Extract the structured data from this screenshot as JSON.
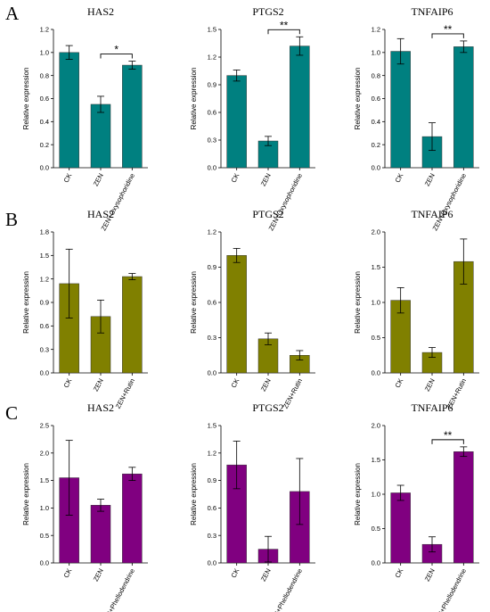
{
  "row_labels": [
    "A",
    "B",
    "C"
  ],
  "chart_data": [
    {
      "type": "bar",
      "row": 0,
      "col": 0,
      "title": "HAS2",
      "ylabel": "Relative expression",
      "color": "#008080",
      "categories": [
        "CK",
        "ZEN",
        "ZEN+Oxysophoridine"
      ],
      "values": [
        1.0,
        0.55,
        0.89
      ],
      "errors": [
        0.06,
        0.07,
        0.035
      ],
      "ylim": [
        0,
        1.2
      ],
      "yticks": [
        "0.0",
        "0.2",
        "0.4",
        "0.6",
        "0.8",
        "1.0",
        "1.2"
      ],
      "significance": [
        {
          "from": 1,
          "to": 2,
          "label": "*"
        }
      ]
    },
    {
      "type": "bar",
      "row": 0,
      "col": 1,
      "title": "PTGS2",
      "ylabel": "Relative expression",
      "color": "#008080",
      "categories": [
        "CK",
        "ZEN",
        "ZEN+Oxysophoridine"
      ],
      "values": [
        1.0,
        0.29,
        1.32
      ],
      "errors": [
        0.06,
        0.05,
        0.1
      ],
      "ylim": [
        0,
        1.5
      ],
      "yticks": [
        "0.0",
        "0.3",
        "0.6",
        "0.9",
        "1.2",
        "1.5"
      ],
      "significance": [
        {
          "from": 1,
          "to": 2,
          "label": "**"
        }
      ]
    },
    {
      "type": "bar",
      "row": 0,
      "col": 2,
      "title": "TNFAIP6",
      "ylabel": "Relative expression",
      "color": "#008080",
      "categories": [
        "CK",
        "ZEN",
        "ZEN+Oxysophoridine"
      ],
      "values": [
        1.01,
        0.27,
        1.05
      ],
      "errors": [
        0.11,
        0.12,
        0.05
      ],
      "ylim": [
        0,
        1.2
      ],
      "yticks": [
        "0.0",
        "0.2",
        "0.4",
        "0.6",
        "0.8",
        "1.0",
        "1.2"
      ],
      "significance": [
        {
          "from": 1,
          "to": 2,
          "label": "**"
        }
      ]
    },
    {
      "type": "bar",
      "row": 1,
      "col": 0,
      "title": "HAS2",
      "ylabel": "Relative expression",
      "color": "#808000",
      "categories": [
        "CK",
        "ZEN",
        "ZEN+Rutin"
      ],
      "values": [
        1.14,
        0.72,
        1.23
      ],
      "errors": [
        0.44,
        0.21,
        0.04
      ],
      "ylim": [
        0,
        1.8
      ],
      "yticks": [
        "0.0",
        "0.3",
        "0.6",
        "0.9",
        "1.2",
        "1.5",
        "1.8"
      ],
      "significance": []
    },
    {
      "type": "bar",
      "row": 1,
      "col": 1,
      "title": "PTGS2",
      "ylabel": "Relative expression",
      "color": "#808000",
      "categories": [
        "CK",
        "ZEN",
        "ZEN+Rutin"
      ],
      "values": [
        1.0,
        0.29,
        0.15
      ],
      "errors": [
        0.06,
        0.05,
        0.04
      ],
      "ylim": [
        0,
        1.2
      ],
      "yticks": [
        "0.0",
        "0.3",
        "0.6",
        "0.9",
        "1.2"
      ],
      "significance": []
    },
    {
      "type": "bar",
      "row": 1,
      "col": 2,
      "title": "TNFAIP6",
      "ylabel": "Relative expression",
      "color": "#808000",
      "categories": [
        "CK",
        "ZEN",
        "ZEN+Rutin"
      ],
      "values": [
        1.03,
        0.29,
        1.58
      ],
      "errors": [
        0.18,
        0.07,
        0.32
      ],
      "ylim": [
        0,
        2.0
      ],
      "yticks": [
        "0.0",
        "0.5",
        "1.0",
        "1.5",
        "2.0"
      ],
      "significance": []
    },
    {
      "type": "bar",
      "row": 2,
      "col": 0,
      "title": "HAS2",
      "ylabel": "Relative expression",
      "color": "#800080",
      "categories": [
        "CK",
        "ZEN",
        "ZEN+Phellodendrine"
      ],
      "values": [
        1.55,
        1.05,
        1.62
      ],
      "errors": [
        0.68,
        0.11,
        0.12
      ],
      "ylim": [
        0,
        2.5
      ],
      "yticks": [
        "0.0",
        "0.5",
        "1.0",
        "1.5",
        "2.0",
        "2.5"
      ],
      "significance": []
    },
    {
      "type": "bar",
      "row": 2,
      "col": 1,
      "title": "PTGS2",
      "ylabel": "Relative expression",
      "color": "#800080",
      "categories": [
        "CK",
        "ZEN",
        "ZEN+Phellodendrine"
      ],
      "values": [
        1.07,
        0.15,
        0.78
      ],
      "errors": [
        0.26,
        0.14,
        0.36
      ],
      "ylim": [
        0,
        1.5
      ],
      "yticks": [
        "0.0",
        "0.3",
        "0.6",
        "0.9",
        "1.2",
        "1.5"
      ],
      "significance": []
    },
    {
      "type": "bar",
      "row": 2,
      "col": 2,
      "title": "TNFAIP6",
      "ylabel": "Relative expression",
      "color": "#800080",
      "categories": [
        "CK",
        "ZEN",
        "ZEN+Phellodendrine"
      ],
      "values": [
        1.02,
        0.27,
        1.62
      ],
      "errors": [
        0.11,
        0.11,
        0.07
      ],
      "ylim": [
        0,
        2.0
      ],
      "yticks": [
        "0.0",
        "0.5",
        "1.0",
        "1.5",
        "2.0"
      ],
      "significance": [
        {
          "from": 1,
          "to": 2,
          "label": "**"
        }
      ]
    }
  ]
}
